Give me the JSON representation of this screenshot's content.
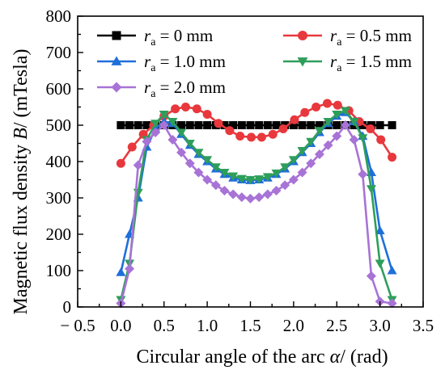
{
  "chart_data": {
    "type": "line",
    "xlabel": "Circular angle of the arc α/ (rad)",
    "xlabel_parts": {
      "prefix": "Circular angle of the arc ",
      "symbol": "α",
      "suffix": "/ (rad)"
    },
    "ylabel": "Magnetic flux density B/ (mTesla)",
    "ylabel_parts": {
      "prefix": "Magnetic flux density ",
      "symbol": "B",
      "suffix": "/ (mTesla)"
    },
    "xlim": [
      -0.5,
      3.5
    ],
    "ylim": [
      0,
      800
    ],
    "xticks": [
      "− 0.5",
      "0.0",
      "0.5",
      "1.0",
      "1.5",
      "2.0",
      "2.5",
      "3.0",
      "3.5"
    ],
    "xtick_values": [
      -0.5,
      0.0,
      0.5,
      1.0,
      1.5,
      2.0,
      2.5,
      3.0,
      3.5
    ],
    "yticks": [
      "0",
      "100",
      "200",
      "300",
      "400",
      "500",
      "600",
      "700",
      "800"
    ],
    "ytick_values": [
      0,
      100,
      200,
      300,
      400,
      500,
      600,
      700,
      800
    ],
    "grid": false,
    "legend_position": "top",
    "series": [
      {
        "name": "r_a = 0 mm",
        "label_sym": "r",
        "label_sub": "a",
        "label_rest": " = 0 mm",
        "color": "#000000",
        "marker": "square",
        "x": [
          0.0,
          0.1,
          0.2,
          0.3,
          0.4,
          0.5,
          0.6,
          0.7,
          0.8,
          0.9,
          1.0,
          1.1,
          1.2,
          1.3,
          1.4,
          1.5,
          1.6,
          1.7,
          1.8,
          1.9,
          2.0,
          2.1,
          2.2,
          2.3,
          2.4,
          2.5,
          2.6,
          2.7,
          2.8,
          2.9,
          3.0,
          3.14
        ],
        "y": [
          500,
          500,
          500,
          500,
          500,
          500,
          500,
          500,
          500,
          500,
          500,
          500,
          500,
          500,
          500,
          500,
          500,
          500,
          500,
          500,
          500,
          500,
          500,
          500,
          500,
          500,
          500,
          500,
          500,
          500,
          500,
          500
        ]
      },
      {
        "name": "r_a = 0.5 mm",
        "label_sym": "r",
        "label_sub": "a",
        "label_rest": " = 0.5 mm",
        "color": "#e8383d",
        "marker": "circle",
        "x": [
          0.0,
          0.13,
          0.26,
          0.38,
          0.5,
          0.63,
          0.75,
          0.88,
          1.0,
          1.13,
          1.26,
          1.38,
          1.51,
          1.63,
          1.76,
          1.88,
          2.01,
          2.13,
          2.26,
          2.39,
          2.51,
          2.64,
          2.76,
          2.89,
          3.01,
          3.14
        ],
        "y": [
          395,
          440,
          475,
          500,
          525,
          545,
          550,
          545,
          530,
          505,
          485,
          470,
          467,
          467,
          475,
          490,
          515,
          535,
          550,
          560,
          555,
          540,
          510,
          490,
          460,
          412
        ]
      },
      {
        "name": "r_a = 1.0 mm",
        "label_sym": "r",
        "label_sub": "a",
        "label_rest": " = 1.0 mm",
        "color": "#1f6fd9",
        "marker": "triangle-up",
        "x": [
          0.0,
          0.1,
          0.2,
          0.3,
          0.4,
          0.5,
          0.6,
          0.7,
          0.8,
          0.9,
          1.0,
          1.1,
          1.2,
          1.3,
          1.4,
          1.5,
          1.6,
          1.7,
          1.8,
          1.9,
          2.0,
          2.1,
          2.2,
          2.3,
          2.4,
          2.5,
          2.6,
          2.7,
          2.8,
          2.9,
          3.0,
          3.14
        ],
        "y": [
          95,
          200,
          300,
          440,
          490,
          510,
          505,
          475,
          445,
          420,
          400,
          380,
          365,
          355,
          350,
          348,
          350,
          355,
          365,
          380,
          400,
          425,
          450,
          480,
          505,
          525,
          535,
          510,
          470,
          370,
          210,
          100
        ]
      },
      {
        "name": "r_a = 1.5 mm",
        "label_sym": "r",
        "label_sub": "a",
        "label_rest": " = 1.5 mm",
        "color": "#2e9e5b",
        "marker": "triangle-down",
        "x": [
          0.0,
          0.1,
          0.2,
          0.3,
          0.4,
          0.5,
          0.6,
          0.7,
          0.8,
          0.9,
          1.0,
          1.1,
          1.2,
          1.3,
          1.4,
          1.5,
          1.6,
          1.7,
          1.8,
          1.9,
          2.0,
          2.1,
          2.2,
          2.3,
          2.4,
          2.5,
          2.6,
          2.7,
          2.8,
          2.9,
          3.0,
          3.14
        ],
        "y": [
          20,
          120,
          315,
          460,
          505,
          530,
          510,
          480,
          450,
          425,
          405,
          385,
          370,
          360,
          353,
          350,
          352,
          358,
          368,
          385,
          405,
          430,
          455,
          485,
          510,
          530,
          540,
          510,
          465,
          325,
          120,
          20
        ]
      },
      {
        "name": "r_a = 2.0 mm",
        "label_sym": "r",
        "label_sub": "a",
        "label_rest": " = 2.0 mm",
        "color": "#a873d6",
        "marker": "diamond",
        "x": [
          0.0,
          0.1,
          0.2,
          0.3,
          0.4,
          0.5,
          0.6,
          0.7,
          0.8,
          0.9,
          1.0,
          1.1,
          1.2,
          1.3,
          1.4,
          1.5,
          1.6,
          1.7,
          1.8,
          1.9,
          2.0,
          2.1,
          2.2,
          2.3,
          2.4,
          2.5,
          2.6,
          2.7,
          2.8,
          2.9,
          3.0,
          3.14
        ],
        "y": [
          10,
          105,
          390,
          455,
          480,
          500,
          460,
          425,
          395,
          370,
          350,
          335,
          320,
          310,
          302,
          298,
          302,
          310,
          320,
          335,
          350,
          370,
          395,
          420,
          445,
          470,
          500,
          460,
          365,
          85,
          15,
          10
        ]
      }
    ]
  }
}
